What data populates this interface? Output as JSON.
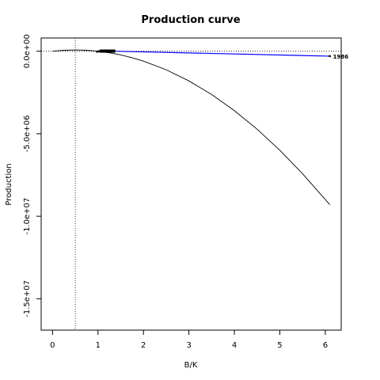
{
  "chart_data": {
    "type": "line",
    "title": "Production curve",
    "xlabel": "B/K",
    "ylabel": "Production",
    "xlim": [
      -0.25,
      6.35
    ],
    "ylim": [
      -16900000,
      800000
    ],
    "x_ticks": [
      0,
      1,
      2,
      3,
      4,
      5,
      6
    ],
    "x_tick_labels": [
      "0",
      "1",
      "2",
      "3",
      "4",
      "5",
      "6"
    ],
    "y_ticks": [
      0,
      -5000000,
      -10000000,
      -15000000
    ],
    "y_tick_labels": [
      "0.0e+00",
      "-5.0e+06",
      "-1.0e+07",
      "-1.5e+07"
    ],
    "grid": false,
    "reference_lines": {
      "vertical_x": 0.5,
      "horizontal_y": 0
    },
    "series": [
      {
        "style": "black-curve",
        "x": [
          0,
          0.25,
          0.5,
          0.75,
          1.0,
          1.25,
          1.5,
          1.75,
          2.0,
          2.5,
          3.0,
          3.5,
          4.0,
          4.5,
          5.0,
          5.5,
          6.1
        ],
        "y": [
          0,
          56000,
          75000,
          56000,
          0,
          -94000,
          -225000,
          -394000,
          -600000,
          -1125000,
          -1800000,
          -2625000,
          -3600000,
          -4725000,
          -6000000,
          -7425000,
          -9300000
        ]
      },
      {
        "style": "blue-observed",
        "x": [
          0.98,
          1.0,
          1.02,
          1.04,
          1.06,
          1.08,
          1.1,
          1.12,
          1.14,
          1.16,
          1.18,
          1.2,
          1.22,
          1.24,
          1.26,
          1.28,
          1.3,
          1.32,
          1.34,
          1.36,
          6.1
        ],
        "y": [
          -30000,
          -20000,
          -10000,
          0,
          10000,
          20000,
          25000,
          30000,
          30000,
          30000,
          30000,
          30000,
          30000,
          30000,
          30000,
          30000,
          25000,
          20000,
          10000,
          0,
          -300000
        ]
      }
    ],
    "annotations": [
      {
        "text": "1986",
        "x": 6.1,
        "y": -300000
      }
    ]
  }
}
